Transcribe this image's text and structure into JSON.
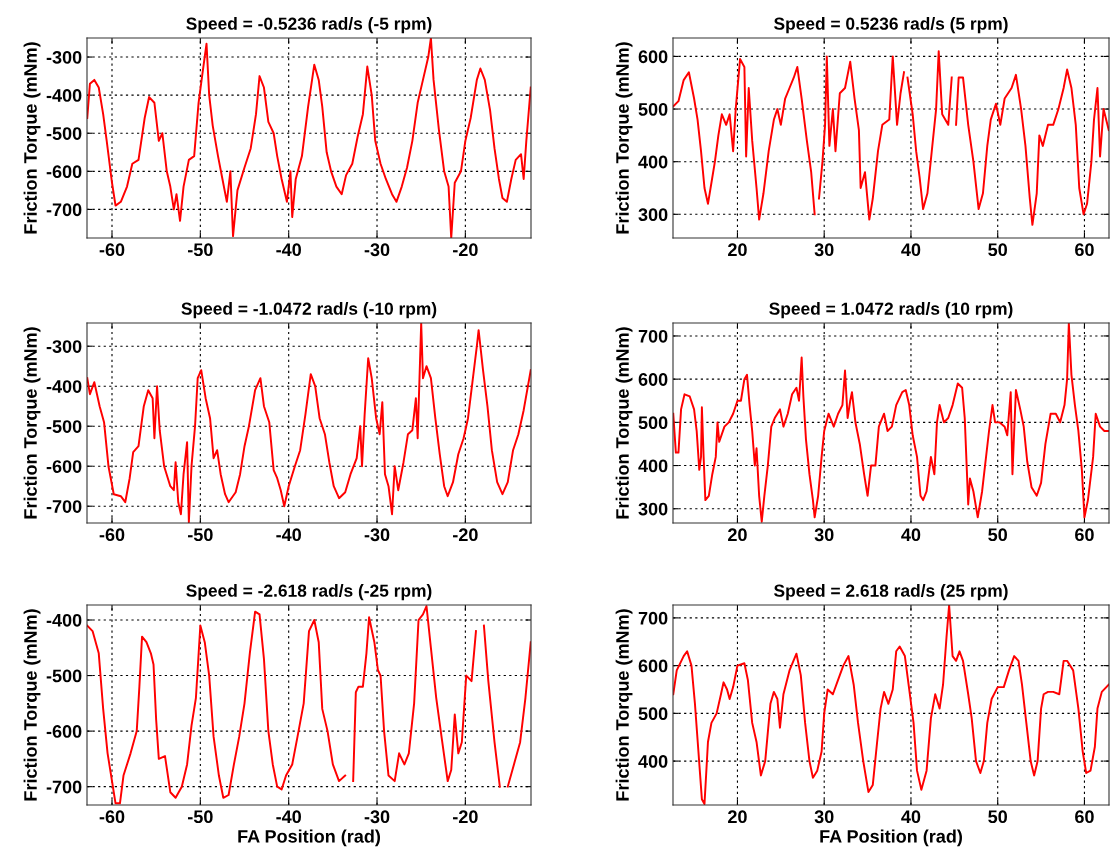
{
  "chart_data": [
    {
      "type": "line",
      "title": "Speed = -0.5236 rad/s (-5 rpm)",
      "ylabel": "Friction Torque (mNm)",
      "color": "#ff0000",
      "grid": true,
      "line_style": "solid",
      "xlim": [
        -62.83,
        -12.57
      ],
      "ylim": [
        -775,
        -250
      ],
      "xticks": [
        -60,
        -50,
        -40,
        -30,
        -20
      ],
      "yticks": [
        -700,
        -600,
        -500,
        -400,
        -300
      ],
      "x": [
        -62.8,
        -62.5,
        -62.0,
        -61.5,
        -61.0,
        -60.6,
        -60.0,
        -59.6,
        -59.0,
        -58.3,
        -57.7,
        -57.0,
        -56.3,
        -55.8,
        -55.2,
        -54.7,
        -54.3,
        -53.8,
        -53.4,
        -53.0,
        -52.7,
        -52.3,
        -51.9,
        -51.3,
        -50.7,
        -50.2,
        -49.8,
        -49.3,
        -49.0,
        -48.6,
        -48.0,
        -47.5,
        -47.0,
        -46.6,
        -46.3,
        -45.8,
        -45.0,
        -44.3,
        -43.7,
        -43.3,
        -42.8,
        -42.3,
        -41.7,
        -41.3,
        -40.8,
        -40.2,
        -39.8,
        -39.6,
        -39.2,
        -38.5,
        -37.8,
        -37.1,
        -36.6,
        -36.2,
        -35.7,
        -35.2,
        -34.6,
        -34.0,
        -33.5,
        -32.8,
        -32.2,
        -31.6,
        -31.1,
        -30.6,
        -30.2,
        -29.6,
        -29.0,
        -28.3,
        -27.8,
        -27.2,
        -26.6,
        -26.0,
        -25.4,
        -24.8,
        -24.2,
        -23.9,
        -23.6,
        -23.0,
        -22.4,
        -21.9,
        -21.6,
        -21.2,
        -20.5,
        -20.0,
        -19.4,
        -18.7,
        -18.3,
        -17.8,
        -17.2,
        -16.7,
        -16.2,
        -15.8,
        -15.3,
        -14.8,
        -14.3,
        -13.7,
        -13.4,
        -13.1,
        -12.6
      ],
      "values": [
        -460,
        -370,
        -360,
        -380,
        -450,
        -520,
        -630,
        -690,
        -680,
        -640,
        -580,
        -570,
        -460,
        -405,
        -420,
        -520,
        -500,
        -600,
        -640,
        -700,
        -660,
        -730,
        -640,
        -570,
        -560,
        -420,
        -350,
        -265,
        -400,
        -480,
        -560,
        -620,
        -680,
        -600,
        -770,
        -650,
        -590,
        -540,
        -450,
        -350,
        -380,
        -470,
        -500,
        -560,
        -620,
        -680,
        -600,
        -720,
        -620,
        -560,
        -430,
        -320,
        -360,
        -430,
        -550,
        -600,
        -640,
        -660,
        -610,
        -580,
        -510,
        -450,
        -325,
        -400,
        -520,
        -580,
        -620,
        -660,
        -680,
        -640,
        -590,
        -520,
        -420,
        -360,
        -300,
        -250,
        -360,
        -490,
        -600,
        -640,
        -775,
        -630,
        -600,
        -520,
        -460,
        -360,
        -330,
        -360,
        -440,
        -540,
        -620,
        -670,
        -680,
        -620,
        -570,
        -555,
        -620,
        -520,
        -380
      ]
    },
    {
      "type": "line",
      "title": "Speed = 0.5236 rad/s (5 rpm)",
      "ylabel": "Friction Torque (mNm)",
      "color": "#ff0000",
      "grid": true,
      "line_style": "solid",
      "xlim": [
        12.57,
        62.83
      ],
      "ylim": [
        255,
        635
      ],
      "xticks": [
        20,
        30,
        40,
        50,
        60
      ],
      "yticks": [
        300,
        400,
        500,
        600
      ],
      "x": [
        12.6,
        13.2,
        13.8,
        14.4,
        15.0,
        15.4,
        15.8,
        16.2,
        16.6,
        17.0,
        17.4,
        17.8,
        18.2,
        18.7,
        19.1,
        19.5,
        19.8,
        20.3,
        20.8,
        21.0,
        21.3,
        21.7,
        22.2,
        22.5,
        23.0,
        23.6,
        24.2,
        24.6,
        25.0,
        25.5,
        26.0,
        26.5,
        26.9,
        27.4,
        28.0,
        28.5,
        28.9,
        29.1,
        29.4,
        29.8,
        30.1,
        30.3,
        30.6,
        31.0,
        31.3,
        31.8,
        32.4,
        33.0,
        33.5,
        34.0,
        34.2,
        34.7,
        35.2,
        35.6,
        36.2,
        36.7,
        37.5,
        37.9,
        38.4,
        38.8,
        39.2,
        39.3,
        39.6,
        40.2,
        40.6,
        41.0,
        41.4,
        41.9,
        42.4,
        42.9,
        43.2,
        43.6,
        44.3,
        44.7,
        45.0,
        45.2,
        45.5,
        46.0,
        46.6,
        47.2,
        47.8,
        48.3,
        48.8,
        49.2,
        49.8,
        50.3,
        50.8,
        51.6,
        52.1,
        52.7,
        53.2,
        53.7,
        54.0,
        54.5,
        54.8,
        55.2,
        55.8,
        56.4,
        57.0,
        57.6,
        58.0,
        58.5,
        59.0,
        59.4,
        59.9,
        60.3,
        60.8,
        61.1,
        61.5,
        61.8,
        62.2,
        62.8
      ],
      "values": [
        505,
        515,
        555,
        570,
        520,
        480,
        420,
        350,
        320,
        360,
        400,
        450,
        490,
        470,
        490,
        420,
        500,
        595,
        580,
        410,
        540,
        440,
        350,
        290,
        340,
        420,
        480,
        500,
        470,
        520,
        540,
        560,
        580,
        520,
        440,
        380,
        300,
        null,
        330,
        400,
        470,
        600,
        430,
        500,
        420,
        530,
        540,
        590,
        520,
        460,
        350,
        380,
        290,
        330,
        420,
        470,
        480,
        600,
        470,
        530,
        570,
        null,
        560,
        490,
        420,
        370,
        310,
        340,
        420,
        500,
        610,
        490,
        470,
        560,
        null,
        470,
        560,
        560,
        470,
        400,
        310,
        340,
        430,
        480,
        510,
        470,
        520,
        540,
        565,
        500,
        430,
        330,
        280,
        340,
        450,
        430,
        470,
        470,
        500,
        540,
        575,
        540,
        470,
        350,
        300,
        320,
        400,
        480,
        540,
        410,
        500,
        460
      ]
    },
    {
      "type": "line",
      "title": "Speed = -1.0472 rad/s (-10 rpm)",
      "ylabel": "Friction Torque (mNm)",
      "color": "#ff0000",
      "grid": true,
      "line_style": "solid",
      "xlim": [
        -62.83,
        -12.57
      ],
      "ylim": [
        -742,
        -242
      ],
      "xticks": [
        -60,
        -50,
        -40,
        -30,
        -20
      ],
      "yticks": [
        -700,
        -600,
        -500,
        -400,
        -300
      ],
      "x": [
        -62.8,
        -62.5,
        -62.0,
        -61.4,
        -60.9,
        -60.4,
        -59.8,
        -59.0,
        -58.5,
        -58.0,
        -57.6,
        -57.0,
        -56.4,
        -55.9,
        -55.4,
        -55.2,
        -54.9,
        -54.6,
        -54.1,
        -53.4,
        -53.0,
        -52.8,
        -52.5,
        -52.2,
        -51.9,
        -51.5,
        -51.3,
        -51.0,
        -50.6,
        -50.3,
        -49.9,
        -49.4,
        -48.9,
        -48.5,
        -48.1,
        -47.7,
        -47.2,
        -46.8,
        -46.0,
        -45.5,
        -45.0,
        -44.5,
        -43.8,
        -43.2,
        -42.8,
        -42.2,
        -41.7,
        -41.3,
        -40.9,
        -40.5,
        -40.0,
        -39.3,
        -38.7,
        -38.1,
        -37.5,
        -37.0,
        -36.5,
        -35.9,
        -35.4,
        -34.9,
        -34.3,
        -33.6,
        -33.0,
        -32.3,
        -31.9,
        -31.7,
        -31.4,
        -31.0,
        -30.6,
        -30.1,
        -29.7,
        -29.4,
        -29.1,
        -28.7,
        -28.3,
        -28.0,
        -27.6,
        -27.0,
        -26.5,
        -26.0,
        -25.6,
        -25.4,
        -25.0,
        -24.8,
        -24.4,
        -23.9,
        -23.4,
        -22.9,
        -22.4,
        -22.0,
        -21.4,
        -20.8,
        -20.2,
        -19.7,
        -19.2,
        -18.7,
        -18.5,
        -18.0,
        -17.5,
        -17.0,
        -16.4,
        -15.8,
        -15.2,
        -14.6,
        -14.0,
        -13.4,
        -12.6
      ],
      "values": [
        -380,
        -420,
        -390,
        -450,
        -490,
        -600,
        -670,
        -675,
        -690,
        -630,
        -565,
        -550,
        -450,
        -410,
        -430,
        -530,
        -400,
        -510,
        -600,
        -650,
        -660,
        -590,
        -690,
        -720,
        -620,
        -540,
        -740,
        -600,
        -500,
        -380,
        -360,
        -430,
        -480,
        -580,
        -560,
        -620,
        -670,
        -690,
        -665,
        -620,
        -550,
        -500,
        -410,
        -380,
        -450,
        -490,
        -610,
        -630,
        -660,
        -700,
        -650,
        -600,
        -560,
        -470,
        -370,
        -400,
        -480,
        -520,
        -590,
        -650,
        -680,
        -665,
        -620,
        -580,
        -500,
        -600,
        -470,
        -330,
        -380,
        -480,
        -520,
        -440,
        -620,
        -650,
        -720,
        -600,
        -660,
        -590,
        -520,
        -510,
        -430,
        -530,
        -242,
        -380,
        -350,
        -380,
        -480,
        -570,
        -650,
        -675,
        -640,
        -570,
        -530,
        -480,
        -390,
        -300,
        -260,
        -360,
        -450,
        -560,
        -640,
        -670,
        -640,
        -560,
        -520,
        -460,
        -360
      ]
    },
    {
      "type": "line",
      "title": "Speed = 1.0472 rad/s (10 rpm)",
      "ylabel": "Friction Torque (mNm)",
      "color": "#ff0000",
      "grid": true,
      "line_style": "solid",
      "xlim": [
        12.57,
        62.83
      ],
      "ylim": [
        267,
        730
      ],
      "xticks": [
        20,
        30,
        40,
        50,
        60
      ],
      "yticks": [
        300,
        400,
        500,
        600,
        700
      ],
      "x": [
        12.6,
        12.9,
        13.2,
        13.5,
        13.9,
        14.5,
        15.0,
        15.3,
        15.6,
        15.8,
        15.9,
        16.1,
        16.3,
        16.7,
        17.1,
        17.5,
        17.7,
        17.9,
        18.5,
        19.0,
        19.5,
        20.0,
        20.4,
        20.8,
        21.1,
        21.4,
        21.7,
        22.0,
        22.2,
        22.5,
        22.8,
        23.1,
        23.5,
        23.9,
        24.3,
        24.9,
        25.3,
        25.8,
        26.3,
        26.8,
        27.1,
        27.4,
        27.6,
        27.9,
        28.3,
        28.7,
        28.9,
        29.3,
        29.7,
        30.0,
        30.5,
        31.1,
        31.6,
        32.1,
        32.4,
        32.7,
        33.0,
        33.2,
        33.6,
        34.1,
        34.6,
        35.0,
        35.4,
        35.9,
        36.3,
        36.9,
        37.3,
        37.8,
        38.3,
        39.0,
        39.4,
        39.8,
        40.2,
        40.7,
        41.1,
        41.4,
        41.8,
        42.3,
        42.7,
        43.0,
        43.3,
        43.8,
        44.3,
        44.8,
        45.4,
        45.9,
        46.2,
        46.6,
        46.8,
        47.2,
        47.7,
        48.2,
        48.6,
        49.0,
        49.4,
        49.7,
        50.2,
        50.8,
        51.1,
        51.5,
        51.7,
        51.9,
        52.1,
        52.6,
        53.0,
        53.4,
        53.9,
        54.5,
        55.0,
        55.5,
        56.1,
        56.7,
        57.2,
        57.7,
        58.0,
        58.2,
        58.5,
        58.9,
        59.3,
        59.7,
        60.0,
        60.4,
        61.0,
        61.3,
        61.8,
        62.3,
        62.8
      ],
      "values": [
        520,
        430,
        430,
        530,
        565,
        560,
        530,
        480,
        390,
        420,
        535,
        420,
        320,
        330,
        380,
        420,
        500,
        455,
        490,
        500,
        520,
        550,
        550,
        600,
        610,
        540,
        480,
        400,
        440,
        330,
        270,
        330,
        400,
        490,
        510,
        530,
        490,
        520,
        565,
        580,
        550,
        650,
        560,
        460,
        380,
        320,
        280,
        330,
        420,
        480,
        520,
        490,
        520,
        540,
        620,
        510,
        550,
        570,
        500,
        450,
        380,
        330,
        400,
        400,
        490,
        520,
        480,
        490,
        540,
        570,
        575,
        540,
        470,
        420,
        330,
        320,
        340,
        420,
        380,
        500,
        540,
        500,
        510,
        540,
        590,
        580,
        510,
        310,
        370,
        340,
        280,
        340,
        410,
        480,
        540,
        500,
        500,
        490,
        470,
        570,
        380,
        480,
        575,
        530,
        490,
        410,
        350,
        330,
        360,
        450,
        520,
        520,
        500,
        540,
        600,
        730,
        610,
        540,
        480,
        390,
        280,
        320,
        420,
        520,
        490,
        480,
        480
      ]
    },
    {
      "type": "line",
      "title": "Speed = -2.618 rad/s (-25 rpm)",
      "xlabel": "FA Position (rad)",
      "ylabel": "Friction Torque (mNm)",
      "color": "#ff0000",
      "grid": true,
      "line_style": "solid",
      "xlim": [
        -62.83,
        -12.57
      ],
      "ylim": [
        -733,
        -373
      ],
      "xticks": [
        -60,
        -50,
        -40,
        -30,
        -20
      ],
      "yticks": [
        -700,
        -600,
        -500,
        -400
      ],
      "x": [
        -62.8,
        -62.2,
        -61.5,
        -61.0,
        -60.5,
        -59.9,
        -59.6,
        -59.1,
        -58.7,
        -57.9,
        -57.2,
        -56.9,
        -56.6,
        -56.1,
        -55.6,
        -55.3,
        -55.0,
        -54.7,
        -54.0,
        -53.4,
        -52.8,
        -52.1,
        -51.5,
        -51.0,
        -50.5,
        -50.0,
        -49.5,
        -49.0,
        -48.5,
        -47.9,
        -47.4,
        -46.8,
        -46.2,
        -45.6,
        -45.0,
        -44.4,
        -43.8,
        -43.3,
        -42.8,
        -42.3,
        -41.8,
        -41.3,
        -40.8,
        -40.3,
        -39.6,
        -39.0,
        -38.3,
        -37.7,
        -37.1,
        -36.6,
        -36.2,
        -35.6,
        -35.0,
        -34.3,
        -33.6,
        -33.1,
        -32.7,
        -32.4,
        -32.1,
        -31.6,
        -31.2,
        -30.9,
        -30.3,
        -29.9,
        -29.6,
        -29.2,
        -28.7,
        -28.0,
        -27.5,
        -26.9,
        -26.4,
        -25.8,
        -25.3,
        -24.8,
        -24.4,
        -23.9,
        -23.3,
        -22.7,
        -22.0,
        -21.6,
        -21.2,
        -20.8,
        -20.4,
        -19.9,
        -19.3,
        -18.8,
        -18.4,
        -17.9,
        -17.4,
        -16.7,
        -16.1,
        -15.8,
        -15.2,
        -14.5,
        -13.8,
        -13.2,
        -12.6
      ],
      "values": [
        -410,
        -420,
        -460,
        -560,
        -640,
        -700,
        -730,
        -730,
        -680,
        -640,
        -600,
        -520,
        -430,
        -440,
        -460,
        -480,
        -580,
        -650,
        -645,
        -710,
        -720,
        -700,
        -660,
        -590,
        -540,
        -410,
        -440,
        -500,
        -610,
        -680,
        -720,
        -715,
        -660,
        -610,
        -550,
        -460,
        -385,
        -390,
        -470,
        -600,
        -660,
        -700,
        -705,
        -680,
        -660,
        -610,
        -550,
        -420,
        -400,
        -440,
        -560,
        -600,
        -660,
        -690,
        -680,
        null,
        -690,
        -530,
        -520,
        -520,
        -460,
        -395,
        -440,
        -490,
        -500,
        -600,
        -680,
        -690,
        -640,
        -660,
        -640,
        -550,
        -400,
        -390,
        -375,
        -450,
        -540,
        -610,
        -690,
        -670,
        -570,
        -640,
        -620,
        -500,
        -510,
        -420,
        null,
        -410,
        -510,
        -620,
        -700,
        null,
        -700,
        -660,
        -620,
        -540,
        -440
      ]
    },
    {
      "type": "line",
      "title": "Speed = 2.618 rad/s (25 rpm)",
      "xlabel": "FA Position (rad)",
      "ylabel": "Friction Torque (mNm)",
      "color": "#ff0000",
      "grid": true,
      "line_style": "solid",
      "xlim": [
        12.57,
        62.83
      ],
      "ylim": [
        308,
        727
      ],
      "xticks": [
        20,
        30,
        40,
        50,
        60
      ],
      "yticks": [
        400,
        500,
        600,
        700
      ],
      "x": [
        12.6,
        13.0,
        13.8,
        14.2,
        14.7,
        15.1,
        15.5,
        15.9,
        16.2,
        16.6,
        17.0,
        17.6,
        18.1,
        18.4,
        18.8,
        19.1,
        19.5,
        20.0,
        20.8,
        21.2,
        21.7,
        22.2,
        22.7,
        23.2,
        23.8,
        24.2,
        24.6,
        24.9,
        25.3,
        26.0,
        26.8,
        27.3,
        27.8,
        28.3,
        28.7,
        29.2,
        29.7,
        30.0,
        30.4,
        31.0,
        31.6,
        32.2,
        32.8,
        33.4,
        33.9,
        34.5,
        35.1,
        35.6,
        36.1,
        36.5,
        36.9,
        37.4,
        37.9,
        38.3,
        38.7,
        39.3,
        39.8,
        40.3,
        40.7,
        41.2,
        41.8,
        42.3,
        42.8,
        43.3,
        43.7,
        44.1,
        44.4,
        44.8,
        45.2,
        45.6,
        46.0,
        46.6,
        47.0,
        47.5,
        48.0,
        48.4,
        48.8,
        49.3,
        50.0,
        50.7,
        51.3,
        51.9,
        52.4,
        52.8,
        53.3,
        53.8,
        54.2,
        54.6,
        55.0,
        55.3,
        55.8,
        56.4,
        57.1,
        57.6,
        58.0,
        58.7,
        59.3,
        59.8,
        60.2,
        60.7,
        61.2,
        61.5,
        62.0,
        62.8
      ],
      "values": [
        540,
        590,
        620,
        630,
        600,
        520,
        420,
        320,
        310,
        440,
        480,
        500,
        540,
        565,
        550,
        530,
        555,
        600,
        605,
        570,
        480,
        440,
        370,
        400,
        520,
        545,
        530,
        470,
        540,
        590,
        625,
        580,
        480,
        400,
        365,
        380,
        420,
        500,
        550,
        540,
        570,
        600,
        620,
        560,
        480,
        400,
        335,
        350,
        440,
        510,
        545,
        520,
        550,
        630,
        640,
        620,
        550,
        480,
        380,
        340,
        380,
        490,
        540,
        510,
        560,
        660,
        727,
        620,
        610,
        630,
        610,
        540,
        490,
        400,
        375,
        400,
        480,
        530,
        555,
        555,
        590,
        620,
        610,
        560,
        480,
        400,
        370,
        400,
        510,
        540,
        545,
        545,
        540,
        610,
        610,
        590,
        510,
        420,
        375,
        380,
        430,
        510,
        545,
        560
      ]
    }
  ]
}
